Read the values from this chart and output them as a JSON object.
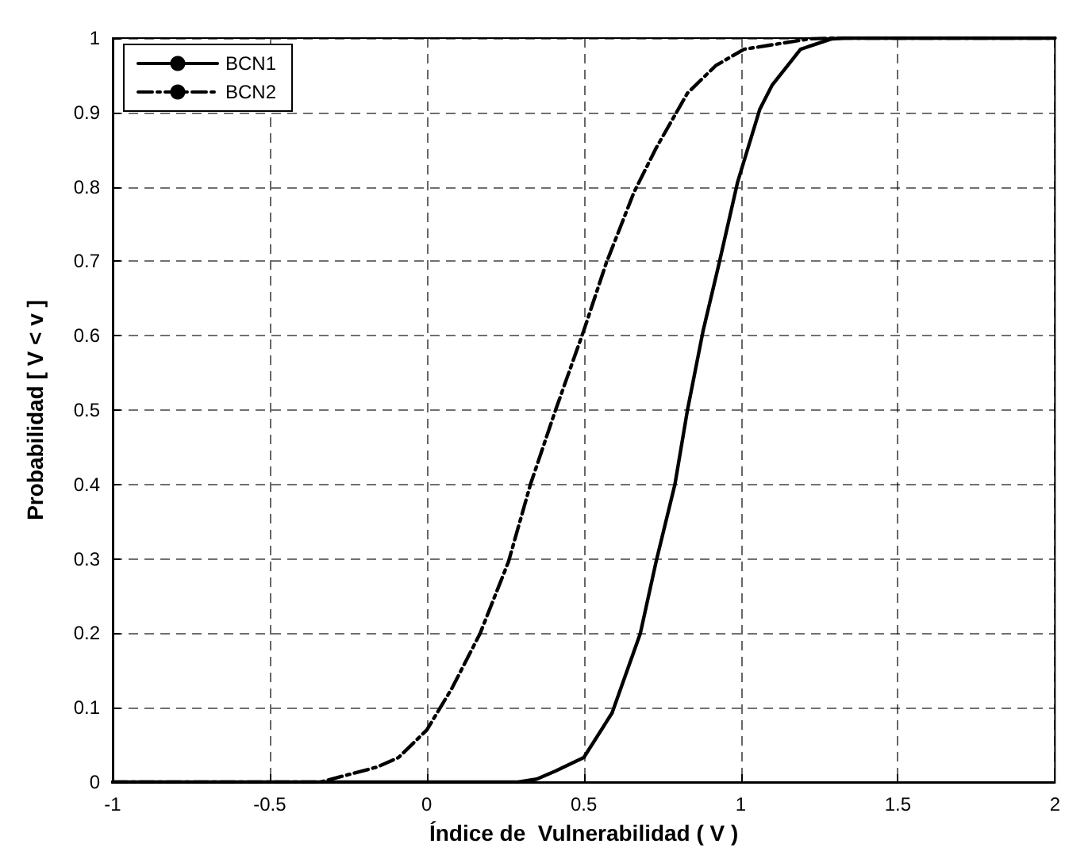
{
  "chart_data": {
    "type": "line",
    "xlabel": "Índice de  Vulnerabilidad ( V )",
    "ylabel": "Probabilidad [ V < v ]",
    "xlim": [
      -1,
      2
    ],
    "xticks": [
      -1,
      -0.5,
      0,
      0.5,
      1,
      1.5,
      2
    ],
    "ylim": [
      0,
      1
    ],
    "yticks": [
      0,
      0.1,
      0.2,
      0.3,
      0.4,
      0.5,
      0.6,
      0.7,
      0.8,
      0.9,
      1
    ],
    "grid": true,
    "legend": "top left",
    "marker": "none",
    "series": [
      {
        "name": "BCN1",
        "color": "#000000",
        "line_style": "solid",
        "x": [
          -1,
          0.29,
          0.35,
          0.41,
          0.5,
          0.59,
          0.68,
          0.73,
          0.79,
          0.83,
          0.88,
          0.93,
          0.99,
          1.06,
          1.1,
          1.19,
          1.29,
          1.33,
          2
        ],
        "values": [
          0,
          0,
          0.004,
          0.015,
          0.033,
          0.093,
          0.2,
          0.296,
          0.4,
          0.5,
          0.607,
          0.696,
          0.807,
          0.904,
          0.937,
          0.985,
          0.999,
          1,
          1
        ]
      },
      {
        "name": "BCN2",
        "color": "#000000",
        "line_style": "dashed",
        "x": [
          -1,
          -0.34,
          -0.16,
          -0.09,
          0,
          0.08,
          0.17,
          0.26,
          0.33,
          0.41,
          0.5,
          0.57,
          0.66,
          0.73,
          0.83,
          0.92,
          1.01,
          1.22,
          1.31,
          2
        ],
        "values": [
          0,
          0,
          0.02,
          0.033,
          0.07,
          0.126,
          0.2,
          0.296,
          0.4,
          0.5,
          0.607,
          0.696,
          0.793,
          0.852,
          0.926,
          0.963,
          0.985,
          0.999,
          1,
          1
        ]
      }
    ]
  }
}
